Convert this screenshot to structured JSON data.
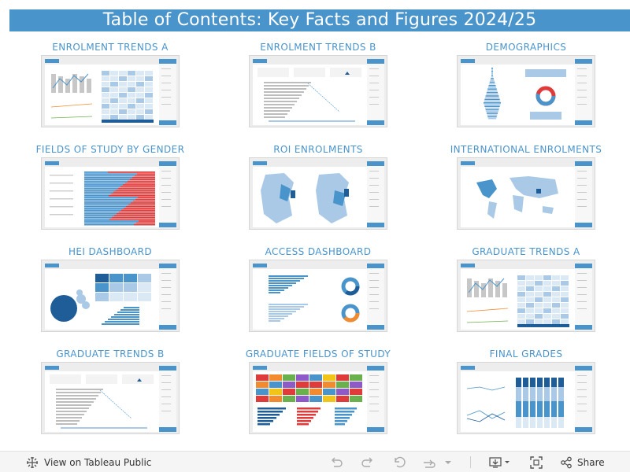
{
  "header": {
    "title": "Table of Contents: Key Facts and Figures 2024/25"
  },
  "tiles": [
    {
      "title": "ENROLMENT TRENDS A",
      "kind": "trends"
    },
    {
      "title": "ENROLMENT TRENDS B",
      "kind": "kpi"
    },
    {
      "title": "DEMOGRAPHICS",
      "kind": "demo"
    },
    {
      "title": "FIELDS OF STUDY BY GENDER",
      "kind": "gender"
    },
    {
      "title": "ROI ENROLMENTS",
      "kind": "map"
    },
    {
      "title": "INTERNATIONAL ENROLMENTS",
      "kind": "world"
    },
    {
      "title": "HEI DASHBOARD",
      "kind": "hei"
    },
    {
      "title": "ACCESS DASHBOARD",
      "kind": "access"
    },
    {
      "title": "GRADUATE TRENDS A",
      "kind": "trends"
    },
    {
      "title": "GRADUATE TRENDS B",
      "kind": "kpi"
    },
    {
      "title": "GRADUATE FIELDS OF STUDY",
      "kind": "treemap"
    },
    {
      "title": "FINAL GRADES",
      "kind": "grades"
    }
  ],
  "footer": {
    "view_label": "View on Tableau Public",
    "share_label": "Share",
    "icons": [
      "tableau-logo-icon",
      "undo-icon",
      "redo-icon",
      "revert-icon",
      "refresh-icon",
      "dropdown-icon",
      "download-icon",
      "fullscreen-icon",
      "share-icon"
    ]
  },
  "colors": {
    "accent": "#4a94cc",
    "light_blue": "#a9c9e6",
    "dark_blue": "#1f5d99",
    "red": "#e03b3b",
    "orange": "#f28b30"
  }
}
